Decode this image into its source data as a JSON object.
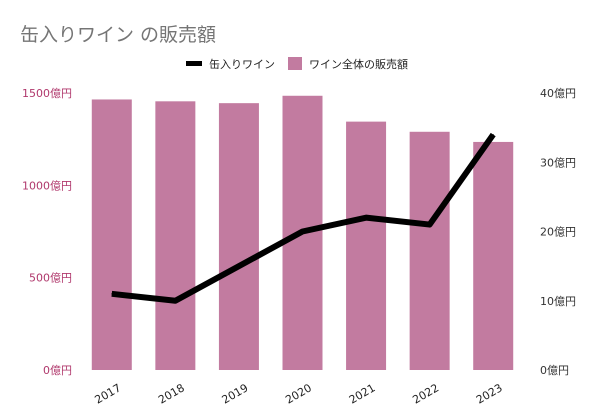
{
  "chart_data": {
    "type": "bar",
    "title": "缶入りワイン の販売額",
    "categories": [
      "2017",
      "2018",
      "2019",
      "2020",
      "2021",
      "2022",
      "2023"
    ],
    "legend_position": "top",
    "grid": false,
    "series": [
      {
        "name": "ワイン全体の販売額",
        "type": "bar",
        "axis": "left",
        "color": "#c27ba0",
        "values": [
          1465,
          1455,
          1445,
          1485,
          1345,
          1290,
          1235
        ]
      },
      {
        "name": "缶入りワイン",
        "type": "line",
        "axis": "right",
        "color": "#000000",
        "values": [
          11,
          10,
          15,
          20,
          22,
          21,
          34
        ]
      }
    ],
    "y_left": {
      "ylim": [
        0,
        1500
      ],
      "ticks": [
        0,
        500,
        1000,
        1500
      ],
      "tick_labels": [
        "0億円",
        "500億円",
        "1000億円",
        "1500億円"
      ]
    },
    "y_right": {
      "ylim": [
        0,
        40
      ],
      "ticks": [
        0,
        10,
        20,
        30,
        40
      ],
      "tick_labels": [
        "0億円",
        "10億円",
        "20億円",
        "30億円",
        "40億円"
      ]
    }
  }
}
